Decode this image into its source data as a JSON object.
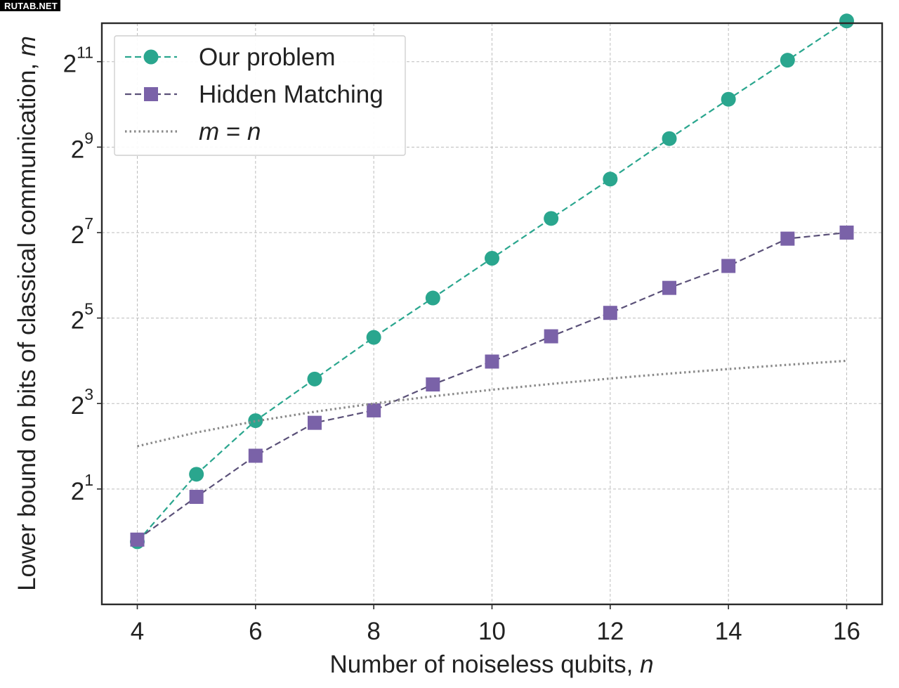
{
  "watermark": "RUTAB.NET",
  "chart_data": {
    "type": "line",
    "xlabel_text": "Number of noiseless qubits, ",
    "xlabel_var": "n",
    "ylabel_text": "Lower bound on bits of classical communication, ",
    "ylabel_var": "m",
    "x_scale": "linear",
    "y_scale": "log2",
    "xlim": [
      3.4,
      16.6
    ],
    "ylim_log2": [
      -1.7,
      11.9
    ],
    "x_ticks": [
      4,
      6,
      8,
      10,
      12,
      14,
      16
    ],
    "y_ticks": [
      {
        "base": "2",
        "exp": "1",
        "value": 2
      },
      {
        "base": "2",
        "exp": "3",
        "value": 8
      },
      {
        "base": "2",
        "exp": "5",
        "value": 32
      },
      {
        "base": "2",
        "exp": "7",
        "value": 128
      },
      {
        "base": "2",
        "exp": "9",
        "value": 512
      },
      {
        "base": "2",
        "exp": "11",
        "value": 2048
      }
    ],
    "grid": true,
    "legend_position": "top-left",
    "x": [
      4,
      5,
      6,
      7,
      8,
      9,
      10,
      11,
      12,
      13,
      14,
      15,
      16
    ],
    "series": [
      {
        "name": "Our problem",
        "marker": "circle",
        "line": "dashed",
        "color": "#2aa68e",
        "values": [
          0.85,
          2.54,
          6.06,
          11.9,
          23.4,
          44.3,
          84.4,
          161,
          305,
          588,
          1113,
          2097,
          3965
        ]
      },
      {
        "name": "Hidden Matching",
        "marker": "square",
        "line": "dashed",
        "color": "#7a62a8",
        "values": [
          0.88,
          1.76,
          3.43,
          5.85,
          7.16,
          10.9,
          15.8,
          23.8,
          34.8,
          52.2,
          74.5,
          116,
          128
        ]
      },
      {
        "name_prefix": "m",
        "name_eq": " = ",
        "name_suffix": "n",
        "marker": "none",
        "line": "dotted",
        "color": "#8a8a8a",
        "values": [
          4,
          5,
          6,
          7,
          8,
          9,
          10,
          11,
          12,
          13,
          14,
          15,
          16
        ]
      }
    ]
  }
}
